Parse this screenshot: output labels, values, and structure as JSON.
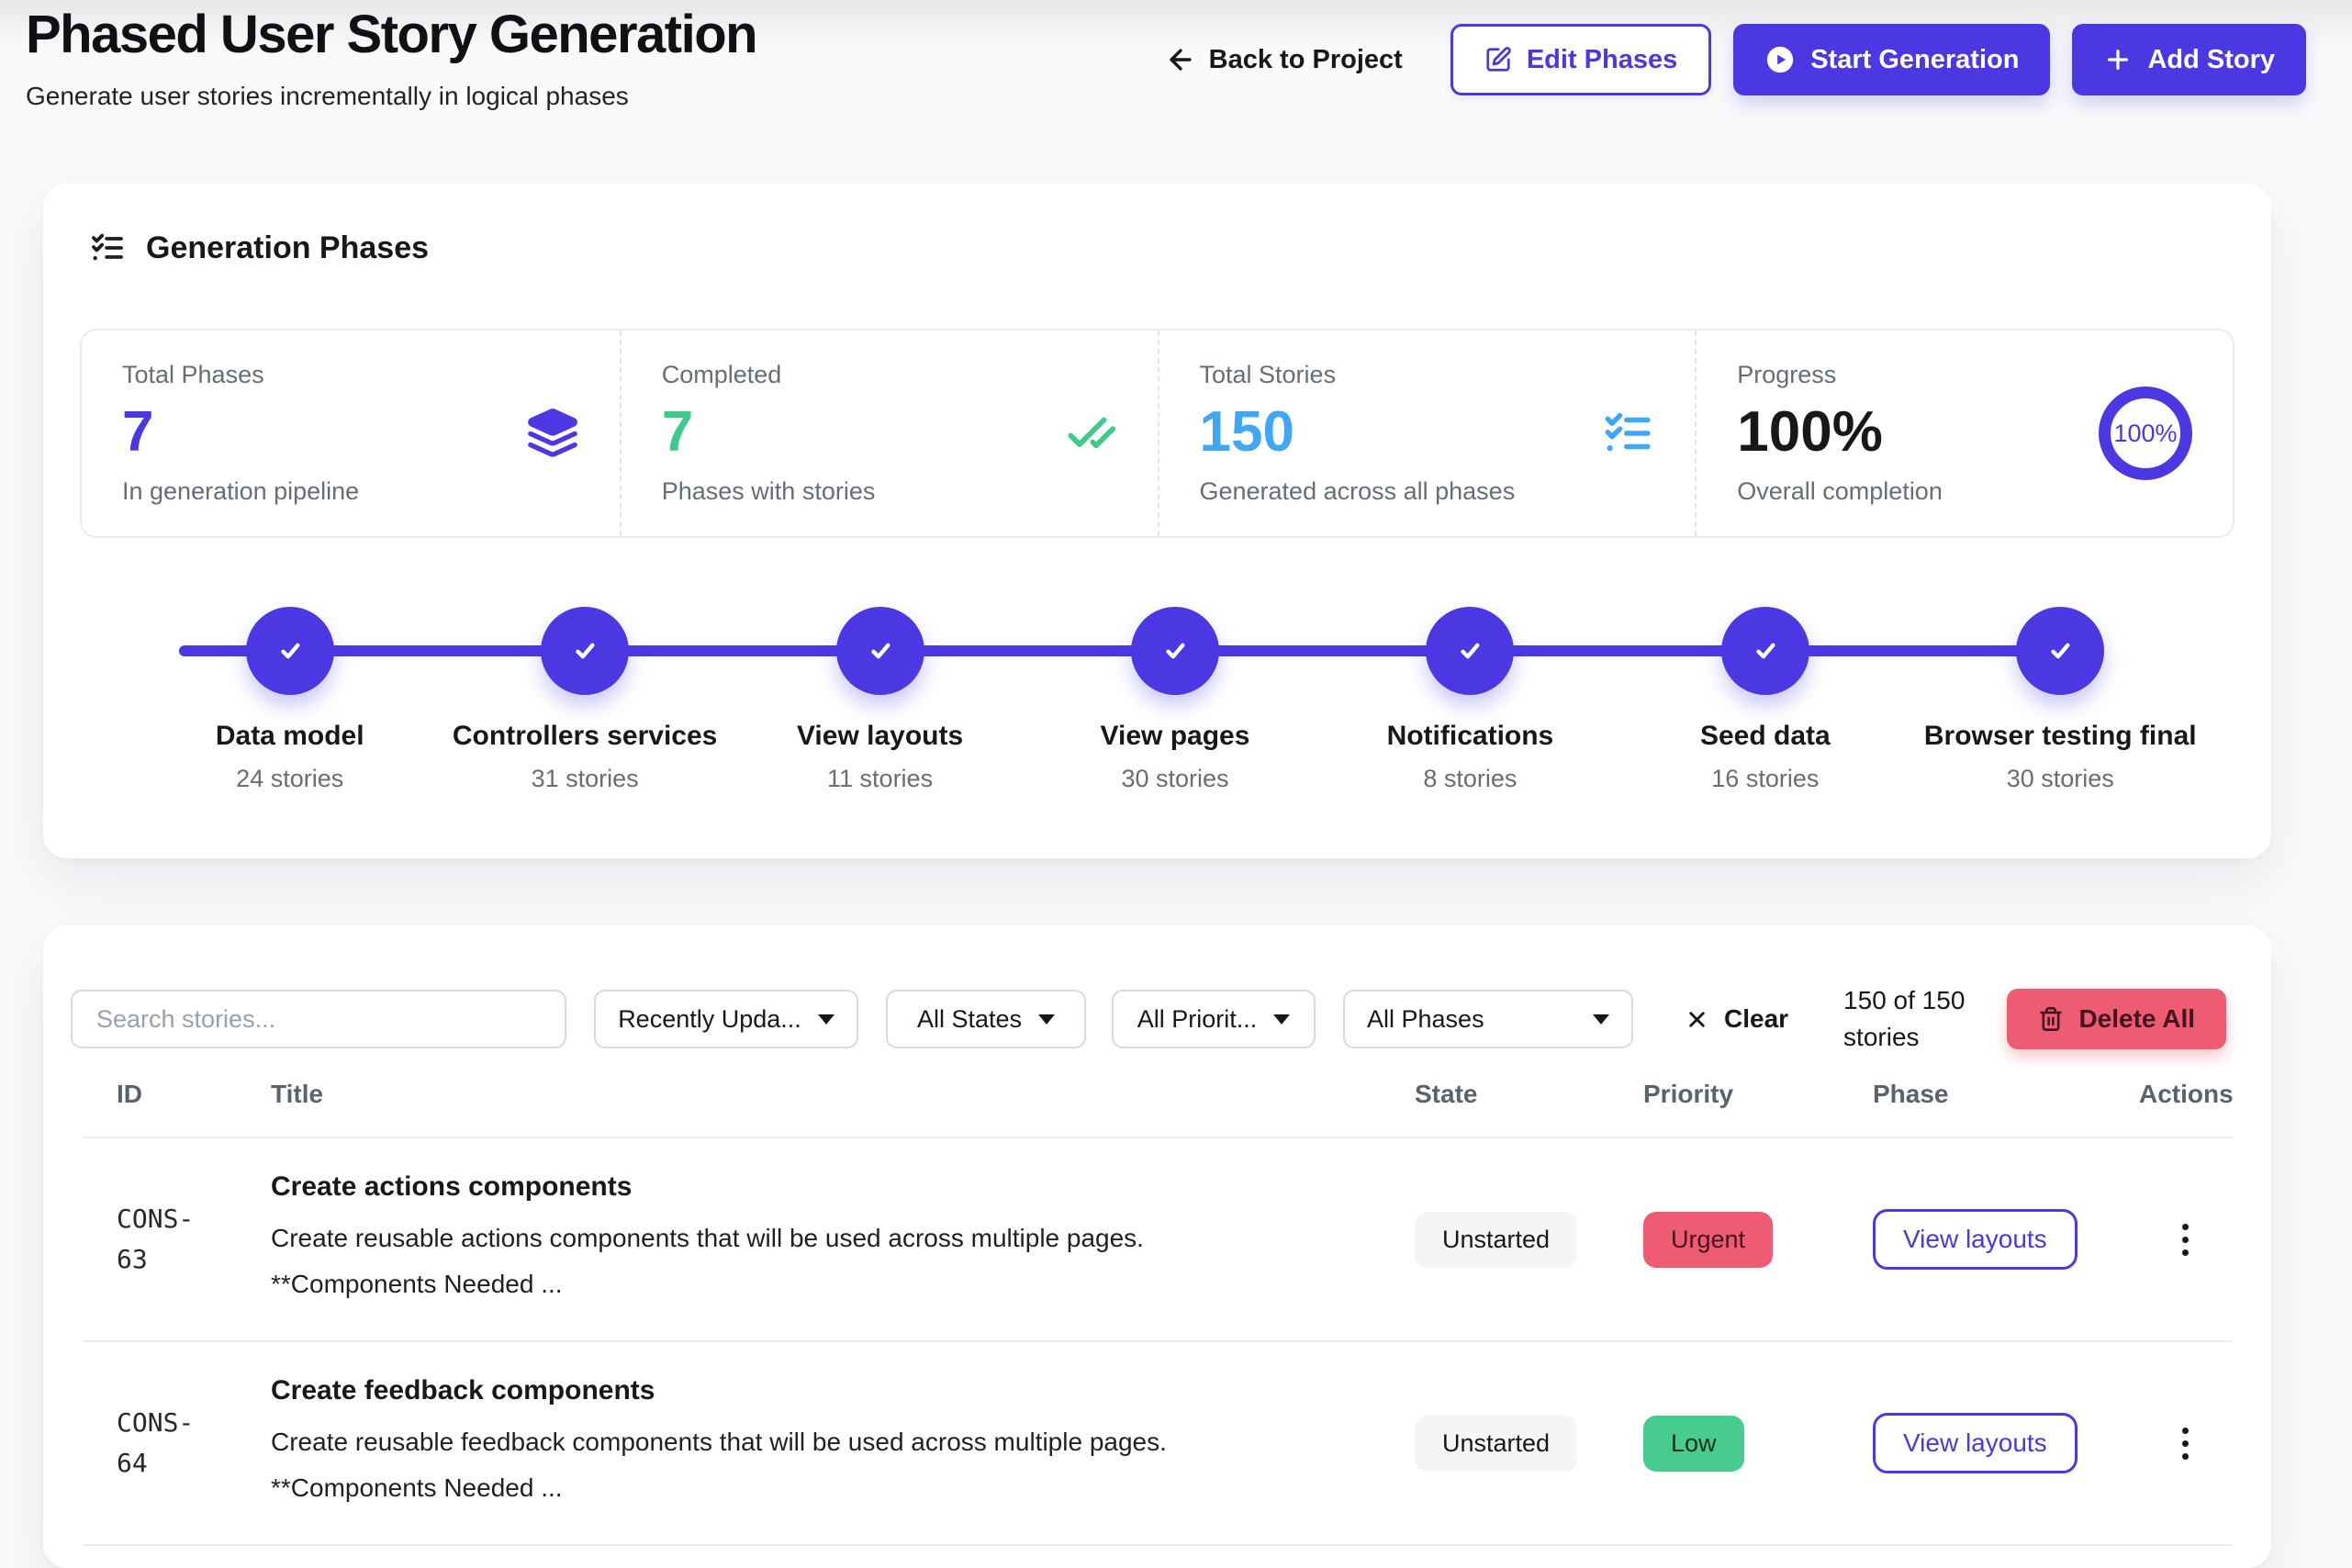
{
  "page": {
    "title": "Phased User Story Generation",
    "subtitle": "Generate user stories incrementally in logical phases"
  },
  "header_actions": {
    "back": "Back to Project",
    "edit_phases": "Edit Phases",
    "start_generation": "Start Generation",
    "add_story": "Add Story"
  },
  "colors": {
    "primary": "#4b38e2",
    "green": "#3ecb8a",
    "blue": "#40a7f5",
    "red": "#ee5c73",
    "urgent_bg": "#ee5c73",
    "urgent_text": "#43151f",
    "low_bg": "#47cb8e",
    "low_text": "#10321f"
  },
  "phases_card": {
    "heading": "Generation Phases",
    "stats": [
      {
        "label": "Total Phases",
        "value": "7",
        "sub": "In generation pipeline",
        "icon": "layers-icon"
      },
      {
        "label": "Completed",
        "value": "7",
        "sub": "Phases with stories",
        "icon": "double-check-icon"
      },
      {
        "label": "Total Stories",
        "value": "150",
        "sub": "Generated across all phases",
        "icon": "list-checks-icon"
      },
      {
        "label": "Progress",
        "value": "100%",
        "sub": "Overall completion",
        "icon": "progress-ring",
        "ring_text": "100%"
      }
    ],
    "timeline": [
      {
        "name": "Data model",
        "stories": "24 stories"
      },
      {
        "name": "Controllers services",
        "stories": "31 stories"
      },
      {
        "name": "View layouts",
        "stories": "11 stories"
      },
      {
        "name": "View pages",
        "stories": "30 stories"
      },
      {
        "name": "Notifications",
        "stories": "8 stories"
      },
      {
        "name": "Seed data",
        "stories": "16 stories"
      },
      {
        "name": "Browser testing final",
        "stories": "30 stories"
      }
    ]
  },
  "filters": {
    "search_placeholder": "Search stories...",
    "sort": "Recently Upda...",
    "state": "All States",
    "priority": "All Priorit...",
    "phase": "All Phases",
    "clear": "Clear",
    "count": "150 of 150 stories",
    "delete_all": "Delete All"
  },
  "table": {
    "columns": {
      "id": "ID",
      "title": "Title",
      "state": "State",
      "priority": "Priority",
      "phase": "Phase",
      "actions": "Actions"
    },
    "rows": [
      {
        "id": "CONS-63",
        "title": "Create actions components",
        "desc": "Create reusable actions components that will be used across multiple pages.",
        "desc2": "**Components Needed ...",
        "state": "Unstarted",
        "priority": "Urgent",
        "priority_bg": "#ee5c73",
        "priority_color": "#43151f",
        "phase_action": "View layouts"
      },
      {
        "id": "CONS-64",
        "title": "Create feedback components",
        "desc": "Create reusable feedback components that will be used across multiple pages.",
        "desc2": "**Components Needed ...",
        "state": "Unstarted",
        "priority": "Low",
        "priority_bg": "#47cb8e",
        "priority_color": "#10321f",
        "phase_action": "View layouts"
      }
    ]
  }
}
